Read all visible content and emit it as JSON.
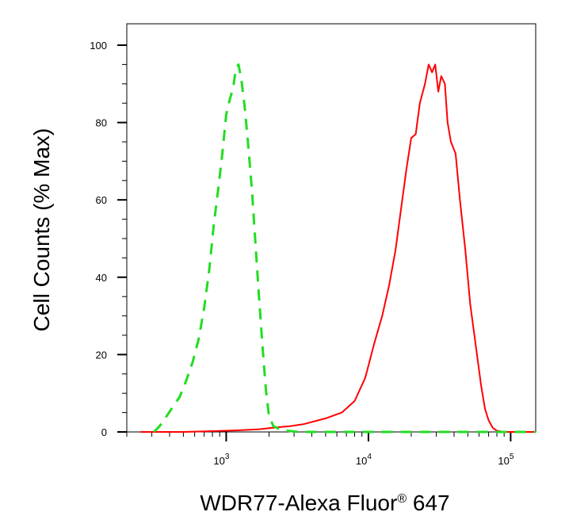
{
  "chart_data": {
    "type": "line",
    "title": "",
    "xlabel": "WDR77-Alexa Fluor",
    "xlabel_superscript": "®",
    "xlabel_suffix": " 647",
    "ylabel": "Cell Counts (% Max)",
    "x_scale": "log",
    "xlim": [
      200,
      150000
    ],
    "ylim": [
      0,
      100
    ],
    "y_ticks": [
      0,
      20,
      40,
      60,
      80,
      100
    ],
    "x_ticks": [
      {
        "value": 1000,
        "base": "10",
        "exp": "3"
      },
      {
        "value": 10000,
        "base": "10",
        "exp": "4"
      },
      {
        "value": 100000,
        "base": "10",
        "exp": "5"
      }
    ],
    "grid": false,
    "series": [
      {
        "color": "#ff0000",
        "style": "solid",
        "points": [
          [
            250,
            0
          ],
          [
            500,
            0
          ],
          [
            800,
            0.2
          ],
          [
            1200,
            0.4
          ],
          [
            1700,
            0.7
          ],
          [
            2300,
            1.2
          ],
          [
            2800,
            1.5
          ],
          [
            3500,
            2
          ],
          [
            5000,
            3.5
          ],
          [
            6500,
            5
          ],
          [
            8000,
            8
          ],
          [
            9500,
            14
          ],
          [
            11000,
            23
          ],
          [
            12500,
            30
          ],
          [
            14000,
            38
          ],
          [
            15500,
            47
          ],
          [
            17000,
            58
          ],
          [
            18500,
            68
          ],
          [
            20000,
            76
          ],
          [
            21500,
            77
          ],
          [
            23000,
            85
          ],
          [
            25000,
            90
          ],
          [
            26500,
            95
          ],
          [
            28000,
            93
          ],
          [
            29500,
            95
          ],
          [
            31000,
            88
          ],
          [
            32500,
            92
          ],
          [
            34500,
            90
          ],
          [
            36000,
            80
          ],
          [
            38000,
            75
          ],
          [
            41000,
            72
          ],
          [
            44000,
            60
          ],
          [
            48000,
            47
          ],
          [
            52000,
            33
          ],
          [
            57000,
            22
          ],
          [
            62000,
            12
          ],
          [
            66000,
            6
          ],
          [
            70000,
            3
          ],
          [
            75000,
            1
          ],
          [
            80000,
            0.3
          ],
          [
            90000,
            0
          ],
          [
            150000,
            0
          ]
        ]
      },
      {
        "color": "#22dd22",
        "style": "dashed",
        "points": [
          [
            310,
            0
          ],
          [
            340,
            1.5
          ],
          [
            380,
            4
          ],
          [
            430,
            7
          ],
          [
            470,
            9
          ],
          [
            520,
            13
          ],
          [
            580,
            18
          ],
          [
            640,
            24
          ],
          [
            700,
            32
          ],
          [
            760,
            42
          ],
          [
            820,
            54
          ],
          [
            880,
            63
          ],
          [
            940,
            72
          ],
          [
            1000,
            82
          ],
          [
            1060,
            86
          ],
          [
            1120,
            89
          ],
          [
            1170,
            94
          ],
          [
            1220,
            95
          ],
          [
            1280,
            91
          ],
          [
            1350,
            84
          ],
          [
            1430,
            74
          ],
          [
            1520,
            62
          ],
          [
            1610,
            48
          ],
          [
            1700,
            35
          ],
          [
            1800,
            22
          ],
          [
            1900,
            11
          ],
          [
            2000,
            4
          ],
          [
            2150,
            1.5
          ],
          [
            2400,
            0.6
          ],
          [
            2700,
            0.3
          ],
          [
            3200,
            0
          ],
          [
            150000,
            0
          ]
        ]
      }
    ]
  }
}
